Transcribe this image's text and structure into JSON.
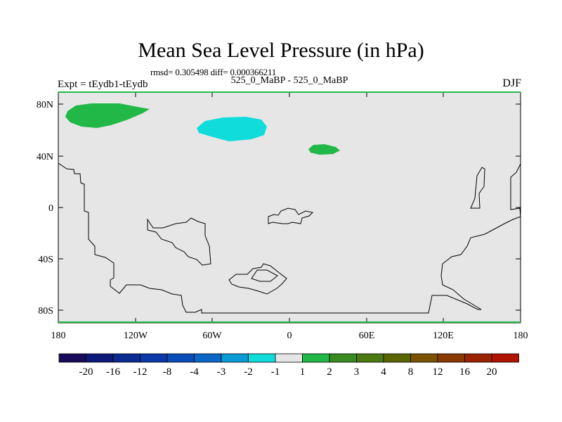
{
  "chart_data": {
    "type": "heatmap",
    "title": "Mean Sea Level Pressure (in hPa)",
    "stats_line": "rmsd= 0.305498 diff= 0.000366211",
    "case_line": "525_0_MaBP - 525_0_MaBP",
    "left_label": "Expt = tEydb1-tEydb",
    "right_label": "DJF",
    "x_ticks": [
      "180",
      "120W",
      "60W",
      "0",
      "60E",
      "120E",
      "180"
    ],
    "x_tick_values": [
      -180,
      -120,
      -60,
      0,
      60,
      120,
      180
    ],
    "y_ticks": [
      "80N",
      "40N",
      "0",
      "40S",
      "80S"
    ],
    "y_tick_values": [
      80,
      40,
      0,
      -40,
      -80
    ],
    "xlim": [
      -180,
      180
    ],
    "ylim": [
      -90,
      90
    ],
    "colorbar": {
      "labels": [
        "-20",
        "-16",
        "-12",
        "-8",
        "-4",
        "-3",
        "-2",
        "-1",
        "1",
        "2",
        "3",
        "4",
        "8",
        "12",
        "16",
        "20"
      ],
      "colors": [
        "#1a0a5a",
        "#0e1a7a",
        "#0a2c92",
        "#0b3aa8",
        "#0a4db8",
        "#0a67c6",
        "#0a9ad6",
        "#10dcdc",
        "#e6e6e6",
        "#22b848",
        "#3a8a22",
        "#4a7a10",
        "#5a6600",
        "#7a5200",
        "#8a3a00",
        "#9a2400",
        "#b01400"
      ]
    },
    "anomalies": [
      {
        "name": "north-pacific-positive",
        "range": "1 to 2",
        "color": "#22b848",
        "lon": [
          -175,
          -115
        ],
        "lat": [
          62,
          80
        ]
      },
      {
        "name": "north-atlantic-negative",
        "range": "-2 to -1",
        "color": "#10dcdc",
        "lon": [
          -72,
          -17
        ],
        "lat": [
          52,
          73
        ]
      },
      {
        "name": "eurasia-positive",
        "range": "1 to 2",
        "color": "#22b848",
        "lon": [
          15,
          40
        ],
        "lat": [
          42,
          49
        ]
      }
    ],
    "background_range": "-1 to 1"
  }
}
